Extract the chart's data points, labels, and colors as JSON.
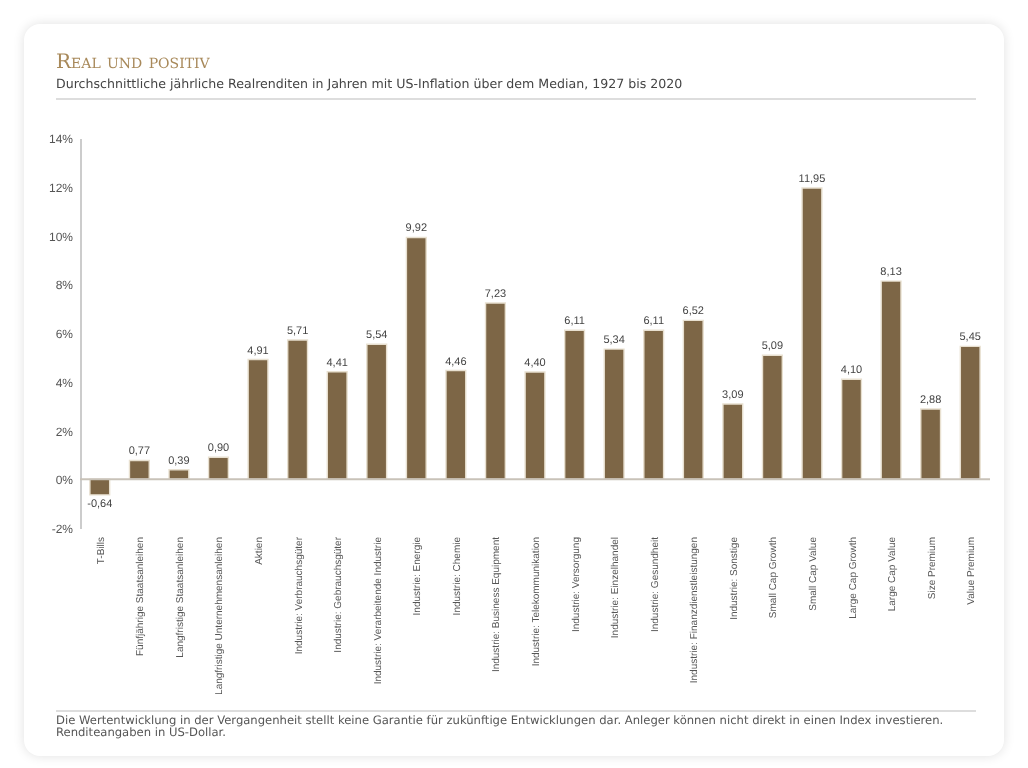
{
  "chart_data": {
    "type": "bar",
    "title": "Real und positiv",
    "subtitle": "Durchschnittliche jährliche Realrenditen in Jahren mit US-Inflation über dem Median, 1927 bis 2020",
    "categories": [
      "T-Bills",
      "Fünfjährige Staatsanleihen",
      "Langfristige Staatsanleihen",
      "Langfristige Unternehmensanleihen",
      "Aktien",
      "Industrie: Verbrauchsgüter",
      "Industrie: Gebrauchsgüter",
      "Industrie: Verarbeitende Industrie",
      "Industrie: Energie",
      "Industrie: Chemie",
      "Industrie: Business Equipment",
      "Industrie: Telekommunikation",
      "Industrie: Versorgung",
      "Industrie: Einzelhandel",
      "Industrie: Gesundheit",
      "Industrie: Finanzdienstleistungen",
      "Industrie: Sonstige",
      "Small Cap Growth",
      "Small Cap Value",
      "Large Cap Growth",
      "Large Cap Value",
      "Size Premium",
      "Value Premium"
    ],
    "values": [
      -0.64,
      0.77,
      0.39,
      0.9,
      4.91,
      5.71,
      4.41,
      5.54,
      9.92,
      4.46,
      7.23,
      4.4,
      6.11,
      5.34,
      6.11,
      6.52,
      3.09,
      5.09,
      11.95,
      4.1,
      8.13,
      2.88,
      5.45
    ],
    "value_labels": [
      "-0,64",
      "0,77",
      "0,39",
      "0,90",
      "4,91",
      "5,71",
      "4,41",
      "5,54",
      "9,92",
      "4,46",
      "7,23",
      "4,40",
      "6,11",
      "5,34",
      "6,11",
      "6,52",
      "3,09",
      "5,09",
      "11,95",
      "4,10",
      "8,13",
      "2,88",
      "5,45"
    ],
    "color": "#7d6646",
    "ylim": [
      -2,
      14
    ],
    "yticks": [
      {
        "value": -2,
        "label": "-2%"
      },
      {
        "value": 0,
        "label": "0%"
      },
      {
        "value": 2,
        "label": "2%"
      },
      {
        "value": 4,
        "label": "4%"
      },
      {
        "value": 6,
        "label": "6%"
      },
      {
        "value": 8,
        "label": "8%"
      },
      {
        "value": 10,
        "label": "10%"
      },
      {
        "value": 12,
        "label": "12%"
      },
      {
        "value": 14,
        "label": "14%"
      }
    ],
    "ref_lines": [
      {
        "axis": "y",
        "value": 0,
        "color": "#c8c2b8"
      }
    ],
    "grid": false,
    "annotations": [
      "Die Wertentwicklung in der Vergangenheit stellt keine Garantie für zukünftige Entwicklungen dar. Anleger können nicht direkt in einen Index investieren.",
      "Renditeangaben in US-Dollar."
    ]
  }
}
